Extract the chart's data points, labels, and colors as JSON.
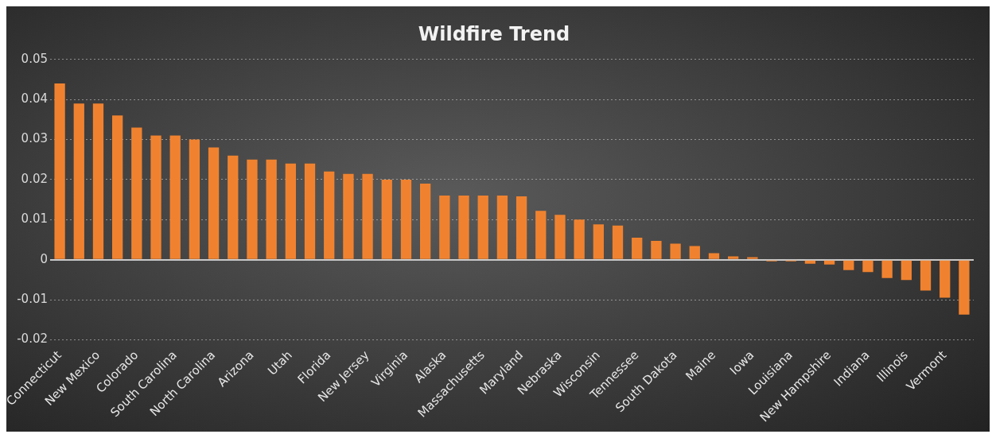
{
  "chart_data": {
    "type": "bar",
    "title": "Wildfire Trend",
    "categories": [
      "Connecticut",
      null,
      "New Mexico",
      null,
      "Colorado",
      null,
      "South Carolina",
      null,
      "North Carolina",
      null,
      "Arizona",
      null,
      "Utah",
      null,
      "Florida",
      null,
      "New Jersey",
      null,
      "Virginia",
      null,
      "Alaska",
      null,
      "Massachusetts",
      null,
      "Maryland",
      null,
      "Nebraska",
      null,
      "Wisconsin",
      null,
      "Tennessee",
      null,
      "South Dakota",
      null,
      "Maine",
      null,
      "Iowa",
      null,
      "Louisiana",
      null,
      "New Hampshire",
      null,
      "Indiana",
      null,
      "Illinois",
      null,
      "Vermont",
      null
    ],
    "values": [
      0.044,
      0.039,
      0.039,
      0.036,
      0.033,
      0.031,
      0.031,
      0.03,
      0.028,
      0.026,
      0.025,
      0.025,
      0.024,
      0.024,
      0.022,
      0.0214,
      0.0214,
      0.02,
      0.02,
      0.019,
      0.016,
      0.016,
      0.016,
      0.016,
      0.0158,
      0.0122,
      0.0112,
      0.01,
      0.0088,
      0.0085,
      0.0055,
      0.0047,
      0.004,
      0.0034,
      0.0016,
      0.0008,
      0.0006,
      -0.0004,
      -0.0004,
      -0.001,
      -0.0012,
      -0.0026,
      -0.0031,
      -0.0046,
      -0.0051,
      -0.0077,
      -0.0095,
      -0.0137
    ],
    "color": "#f0822f",
    "ylim": [
      -0.02,
      0.05
    ],
    "yticks": [
      -0.02,
      -0.01,
      0,
      0.01,
      0.02,
      0.03,
      0.04,
      0.05
    ],
    "grid": "y",
    "legend": false
  }
}
